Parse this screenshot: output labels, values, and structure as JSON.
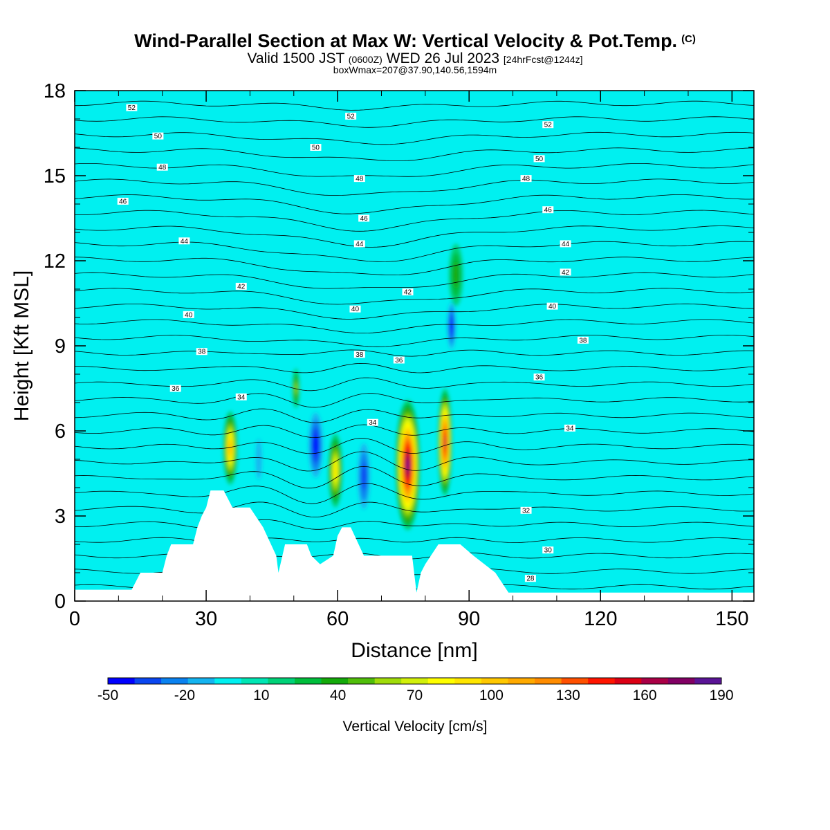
{
  "chart_data": {
    "type": "heatmap",
    "title": "Wind-Parallel Section at Max W: Vertical Velocity & Pot.Temp.",
    "title_tag": "(C)",
    "subtitle": {
      "valid": "Valid 1500 JST",
      "zulu": "(0600Z)",
      "date": "WED 26 Jul 2023",
      "forecast": "[24hrFcst@1244z]",
      "info": "boxWmax=207@37.90,140.56,1594m"
    },
    "xlabel": "Distance [nm]",
    "ylabel": "Height [Kft MSL]",
    "xlim": [
      0,
      155
    ],
    "ylim": [
      0,
      18
    ],
    "x_ticks": [
      "0",
      "30",
      "60",
      "90",
      "120",
      "150"
    ],
    "y_ticks": [
      "0",
      "3",
      "6",
      "9",
      "12",
      "15",
      "18"
    ],
    "colorbar": {
      "label": "Vertical Velocity [cm/s]",
      "tick_labels": [
        "-50",
        "-20",
        "10",
        "40",
        "70",
        "100",
        "130",
        "160",
        "190"
      ],
      "colors": [
        "#0000ff",
        "#0a46f0",
        "#0a82f0",
        "#14b4f0",
        "#00f0f0",
        "#00e6b4",
        "#00d278",
        "#00be3c",
        "#14aa0a",
        "#50be0a",
        "#a0dc0a",
        "#d2f00a",
        "#ffff00",
        "#ffe600",
        "#ffc800",
        "#ffaa00",
        "#ff8c00",
        "#ff5000",
        "#ff1400",
        "#dc0014",
        "#aa0046",
        "#820064",
        "#5a1496"
      ]
    },
    "terrain_kft": [
      [
        0,
        0.4
      ],
      [
        13,
        0.4
      ],
      [
        15,
        1.0
      ],
      [
        20,
        1.0
      ],
      [
        21,
        1.6
      ],
      [
        22,
        2.0
      ],
      [
        27,
        2.0
      ],
      [
        28,
        2.6
      ],
      [
        29,
        3.0
      ],
      [
        30,
        3.3
      ],
      [
        31,
        3.9
      ],
      [
        34,
        3.9
      ],
      [
        36,
        3.3
      ],
      [
        40,
        3.3
      ],
      [
        43,
        2.6
      ],
      [
        46,
        1.6
      ],
      [
        46.5,
        1.0
      ],
      [
        48,
        2.0
      ],
      [
        53,
        2.0
      ],
      [
        54,
        1.6
      ],
      [
        56,
        1.3
      ],
      [
        59,
        1.6
      ],
      [
        60,
        2.3
      ],
      [
        61,
        2.6
      ],
      [
        63,
        2.6
      ],
      [
        66,
        1.6
      ],
      [
        67,
        1.6
      ],
      [
        69,
        1.6
      ],
      [
        77,
        1.6
      ],
      [
        78,
        0.3
      ],
      [
        79,
        1.0
      ],
      [
        80,
        1.3
      ],
      [
        83,
        2.0
      ],
      [
        88,
        2.0
      ],
      [
        91,
        1.6
      ],
      [
        96,
        1.0
      ],
      [
        99,
        0.3
      ],
      [
        155,
        0.3
      ]
    ],
    "theta_labels": [
      {
        "text": "52",
        "x": 13,
        "y": 17.4
      },
      {
        "text": "52",
        "x": 63,
        "y": 17.1
      },
      {
        "text": "52",
        "x": 108,
        "y": 16.8
      },
      {
        "text": "50",
        "x": 19,
        "y": 16.4
      },
      {
        "text": "50",
        "x": 55,
        "y": 16.0
      },
      {
        "text": "50",
        "x": 106,
        "y": 15.6
      },
      {
        "text": "48",
        "x": 20,
        "y": 15.3
      },
      {
        "text": "48",
        "x": 65,
        "y": 14.9
      },
      {
        "text": "48",
        "x": 103,
        "y": 14.9
      },
      {
        "text": "46",
        "x": 11,
        "y": 14.1
      },
      {
        "text": "46",
        "x": 66,
        "y": 13.5
      },
      {
        "text": "46",
        "x": 108,
        "y": 13.8
      },
      {
        "text": "44",
        "x": 25,
        "y": 12.7
      },
      {
        "text": "44",
        "x": 65,
        "y": 12.6
      },
      {
        "text": "44",
        "x": 112,
        "y": 12.6
      },
      {
        "text": "42",
        "x": 38,
        "y": 11.1
      },
      {
        "text": "42",
        "x": 76,
        "y": 10.9
      },
      {
        "text": "42",
        "x": 112,
        "y": 11.6
      },
      {
        "text": "40",
        "x": 26,
        "y": 10.1
      },
      {
        "text": "40",
        "x": 64,
        "y": 10.3
      },
      {
        "text": "40",
        "x": 109,
        "y": 10.4
      },
      {
        "text": "38",
        "x": 29,
        "y": 8.8
      },
      {
        "text": "38",
        "x": 65,
        "y": 8.7
      },
      {
        "text": "38",
        "x": 116,
        "y": 9.2
      },
      {
        "text": "36",
        "x": 23,
        "y": 7.5
      },
      {
        "text": "36",
        "x": 74,
        "y": 8.5
      },
      {
        "text": "36",
        "x": 106,
        "y": 7.9
      },
      {
        "text": "34",
        "x": 38,
        "y": 7.2
      },
      {
        "text": "34",
        "x": 68,
        "y": 6.3
      },
      {
        "text": "34",
        "x": 113,
        "y": 6.1
      },
      {
        "text": "32",
        "x": 103,
        "y": 3.2
      },
      {
        "text": "30",
        "x": 108,
        "y": 1.8
      },
      {
        "text": "28",
        "x": 104,
        "y": 0.8
      }
    ],
    "w_features": [
      {
        "x": 35.5,
        "y": 5.4,
        "w": 100,
        "sx": 1.6,
        "sy": 1.3
      },
      {
        "x": 50.5,
        "y": 7.5,
        "w": 55,
        "sx": 0.8,
        "sy": 0.7
      },
      {
        "x": 59.5,
        "y": 4.6,
        "w": 85,
        "sx": 1.6,
        "sy": 1.3
      },
      {
        "x": 76,
        "y": 4.8,
        "w": 190,
        "sx": 2.8,
        "sy": 2.3
      },
      {
        "x": 84.5,
        "y": 5.6,
        "w": 150,
        "sx": 1.6,
        "sy": 1.9
      },
      {
        "x": 55,
        "y": 5.5,
        "w": -45,
        "sx": 2.0,
        "sy": 1.4
      },
      {
        "x": 66,
        "y": 4.4,
        "w": -40,
        "sx": 1.8,
        "sy": 1.5
      },
      {
        "x": 42,
        "y": 5.0,
        "w": -20,
        "sx": 1.2,
        "sy": 1.2
      },
      {
        "x": 86,
        "y": 9.7,
        "w": -45,
        "sx": 1.2,
        "sy": 1.0
      },
      {
        "x": 87,
        "y": 11.5,
        "w": 35,
        "sx": 1.6,
        "sy": 1.1
      }
    ]
  }
}
